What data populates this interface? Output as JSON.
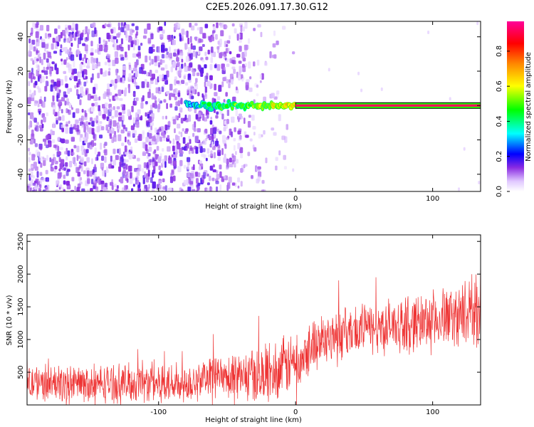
{
  "title": "C2E5.2026.091.17.30.G12",
  "chart_data": [
    {
      "type": "heatmap",
      "name": "spectrogram",
      "xlabel": "Height of straight line (km)",
      "ylabel": "Frequency (Hz)",
      "xlim": [
        -196,
        135
      ],
      "ylim": [
        -50,
        49
      ],
      "xticks": [
        -100,
        0,
        100
      ],
      "xtick_labels": [
        "-100",
        "0",
        "100"
      ],
      "yticks": [
        -40,
        -20,
        0,
        20,
        40
      ],
      "ytick_labels": [
        "-40",
        "-20",
        "0",
        "20",
        "40"
      ],
      "carrier": {
        "frequency_hz": 0,
        "track_start_km": -80,
        "strong_line_start_km": 0,
        "strong_line_end_km": 135,
        "normalized_amplitude": 0.95
      },
      "noise": {
        "dense_until_km": -60,
        "fades_by_km": -5,
        "typical_amplitude": 0.1
      },
      "colorbar": {
        "label": "Normalized spectral amplitude",
        "range": [
          0,
          0.97
        ],
        "ticks": [
          0.0,
          0.2,
          0.4,
          0.6,
          0.8
        ],
        "tick_labels": [
          "0.0",
          "0.2",
          "0.4",
          "0.6",
          "0.8"
        ]
      }
    },
    {
      "type": "line",
      "name": "snr",
      "xlabel": "Height of straight line (km)",
      "ylabel": "SNR (10 * v/v)",
      "xlim": [
        -196,
        135
      ],
      "ylim": [
        0,
        2600
      ],
      "xticks": [
        -100,
        0,
        100
      ],
      "xtick_labels": [
        "-100",
        "0",
        "100"
      ],
      "yticks": [
        500,
        1000,
        1500,
        2000,
        2500
      ],
      "ytick_labels": [
        "500",
        "1000",
        "1500",
        "2000",
        "2500"
      ],
      "series": [
        {
          "name": "SNR",
          "color": "#ee3333",
          "x_km": [
            -196,
            -180,
            -160,
            -140,
            -120,
            -100,
            -80,
            -60,
            -40,
            -20,
            -10,
            0,
            10,
            20,
            40,
            60,
            80,
            100,
            120,
            135
          ],
          "mean": [
            340,
            320,
            330,
            330,
            330,
            340,
            360,
            380,
            420,
            480,
            560,
            680,
            900,
            1030,
            1120,
            1180,
            1230,
            1300,
            1380,
            1450
          ],
          "spread": [
            280,
            270,
            280,
            280,
            290,
            300,
            320,
            330,
            380,
            430,
            450,
            430,
            400,
            380,
            380,
            390,
            400,
            420,
            460,
            520
          ]
        }
      ]
    }
  ]
}
